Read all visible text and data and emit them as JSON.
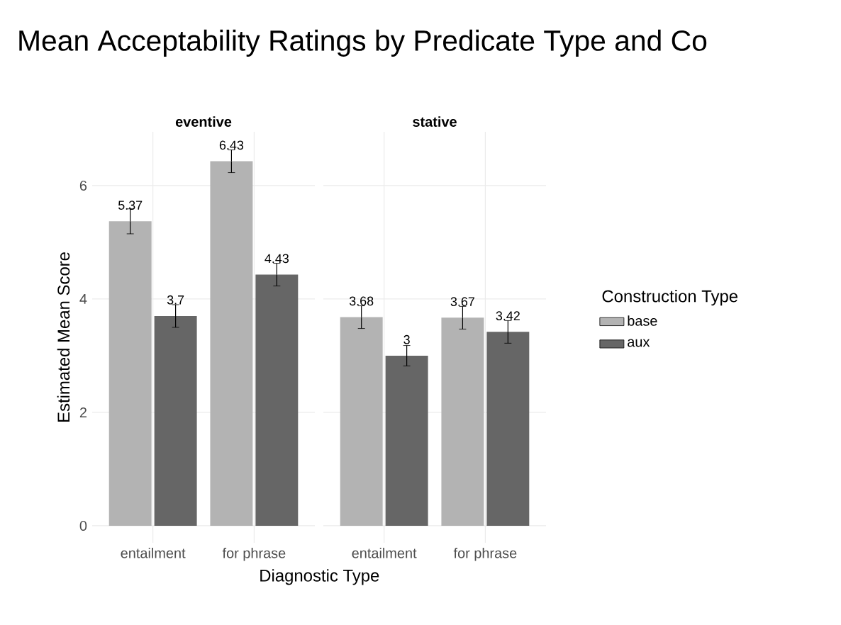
{
  "chart_data": [
    {
      "type": "bar",
      "title": "Mean Acceptability Ratings by Predicate Type and Co",
      "subtitle": "eventive",
      "xlabel": "Diagnostic Type",
      "ylabel": "Estimated Mean Score",
      "categories": [
        "entailment",
        "for phrase"
      ],
      "ylim": [
        -0.3,
        6.95
      ],
      "yticks": [
        0,
        2,
        4,
        6
      ],
      "grid": true,
      "data_labels": true,
      "series": [
        {
          "color": "#b3b3b3",
          "values": [
            5.37,
            6.43
          ],
          "errors": [
            0.22,
            0.2
          ]
        },
        {
          "color": "#666666",
          "values": [
            3.7,
            4.43
          ],
          "errors": [
            0.2,
            0.2
          ]
        }
      ]
    },
    {
      "type": "bar",
      "subtitle": "stative",
      "categories": [
        "entailment",
        "for phrase"
      ],
      "ylim": [
        -0.3,
        6.95
      ],
      "yticks": [
        0,
        2,
        4,
        6
      ],
      "tick_labels": "x",
      "grid": true,
      "data_labels": true,
      "legend": "right",
      "legend_title": "Construction Type",
      "series": [
        {
          "name": "base",
          "color": "#b3b3b3",
          "values": [
            3.68,
            3.67
          ],
          "errors": [
            0.2,
            0.2
          ]
        },
        {
          "name": "aux",
          "color": "#666666",
          "values": [
            3,
            3.42
          ],
          "errors": [
            0.18,
            0.2
          ]
        }
      ]
    }
  ]
}
